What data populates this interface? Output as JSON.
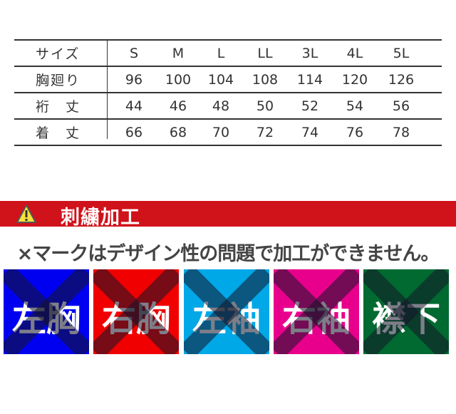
{
  "size_table": {
    "header": {
      "label": "サイズ",
      "values": [
        "S",
        "M",
        "L",
        "LL",
        "3L",
        "4L",
        "5L"
      ]
    },
    "rows": [
      {
        "label": "胸廻り",
        "values": [
          "96",
          "100",
          "104",
          "108",
          "114",
          "120",
          "126"
        ]
      },
      {
        "label": "裄　丈",
        "values": [
          "44",
          "46",
          "48",
          "50",
          "52",
          "54",
          "56"
        ]
      },
      {
        "label": "着　丈",
        "values": [
          "66",
          "68",
          "70",
          "72",
          "74",
          "76",
          "78"
        ]
      }
    ]
  },
  "banner": {
    "title": "刺繍加工",
    "icon": "warning-icon",
    "color": "#d0121b"
  },
  "notice": "×マークはデザイン性の問題で加工ができません。",
  "panels": [
    {
      "label": "左胸",
      "color": "#0000f0",
      "status": "not-available"
    },
    {
      "label": "右胸",
      "color": "#f00000",
      "status": "not-available"
    },
    {
      "label": "左袖",
      "color": "#00a8e8",
      "status": "not-available"
    },
    {
      "label": "右袖",
      "color": "#e8008c",
      "status": "not-available"
    },
    {
      "label": "襟下",
      "color": "#006a30",
      "status": "not-available"
    }
  ]
}
